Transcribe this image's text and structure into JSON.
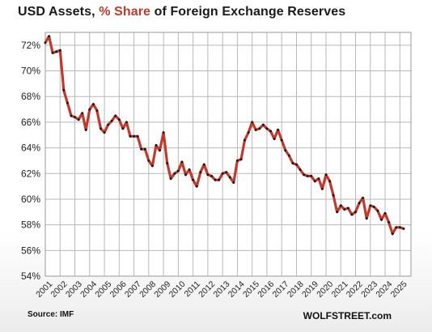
{
  "title": {
    "part1": "USD Assets, ",
    "highlight": "% Share",
    "part2": " of Foreign Exchange Reserves"
  },
  "footer": {
    "source": "Source: IMF",
    "brand": "WOLFSTREET.com"
  },
  "colors": {
    "line": "#c0392b",
    "highlight": "#c0392b",
    "marker": "#111111",
    "grid": "#b8b8b8"
  },
  "chart_data": {
    "type": "line",
    "title": "USD Assets, % Share of Foreign Exchange Reserves",
    "xlabel": "",
    "ylabel": "",
    "ylim": [
      54,
      73
    ],
    "xlim": [
      2001,
      2025.75
    ],
    "grid": true,
    "legend": "none",
    "x_ticks": [
      "2001",
      "2002",
      "2003",
      "2004",
      "2005",
      "2006",
      "2007",
      "2008",
      "2009",
      "2010",
      "2011",
      "2012",
      "2013",
      "2014",
      "2015",
      "2016",
      "2017",
      "2018",
      "2019",
      "2020",
      "2021",
      "2022",
      "2023",
      "2024",
      "2025"
    ],
    "y_ticks": [
      {
        "value": 54,
        "label": "54%"
      },
      {
        "value": 56,
        "label": "56%"
      },
      {
        "value": 58,
        "label": "58%"
      },
      {
        "value": 60,
        "label": "60%"
      },
      {
        "value": 62,
        "label": "62%"
      },
      {
        "value": 64,
        "label": "64%"
      },
      {
        "value": 66,
        "label": "66%"
      },
      {
        "value": 68,
        "label": "68%"
      },
      {
        "value": 70,
        "label": "70%"
      },
      {
        "value": 72,
        "label": "72%"
      }
    ],
    "series": [
      {
        "x": [
          2001.0,
          2001.25,
          2001.5,
          2001.75,
          2002.0,
          2002.25,
          2002.5,
          2002.75,
          2003.0,
          2003.25,
          2003.5,
          2003.75,
          2004.0,
          2004.25,
          2004.5,
          2004.75,
          2005.0,
          2005.25,
          2005.5,
          2005.75,
          2006.0,
          2006.25,
          2006.5,
          2006.75,
          2007.0,
          2007.25,
          2007.5,
          2007.75,
          2008.0,
          2008.25,
          2008.5,
          2008.75,
          2009.0,
          2009.25,
          2009.5,
          2009.75,
          2010.0,
          2010.25,
          2010.5,
          2010.75,
          2011.0,
          2011.25,
          2011.5,
          2011.75,
          2012.0,
          2012.25,
          2012.5,
          2012.75,
          2013.0,
          2013.25,
          2013.5,
          2013.75,
          2014.0,
          2014.25,
          2014.5,
          2014.75,
          2015.0,
          2015.25,
          2015.5,
          2015.75,
          2016.0,
          2016.25,
          2016.5,
          2016.75,
          2017.0,
          2017.25,
          2017.5,
          2017.75,
          2018.0,
          2018.25,
          2018.5,
          2018.75,
          2019.0,
          2019.25,
          2019.5,
          2019.75,
          2020.0,
          2020.25,
          2020.5,
          2020.75,
          2021.0,
          2021.25,
          2021.5,
          2021.75,
          2022.0,
          2022.25,
          2022.5,
          2022.75,
          2023.0,
          2023.25,
          2023.5,
          2023.75,
          2024.0,
          2024.25,
          2024.5,
          2024.75,
          2025.0,
          2025.25
        ],
        "values": [
          72.2,
          72.7,
          71.4,
          71.5,
          71.6,
          68.5,
          67.5,
          66.5,
          66.4,
          66.2,
          66.7,
          65.4,
          67.0,
          67.4,
          66.9,
          65.5,
          65.2,
          65.8,
          66.1,
          66.5,
          66.2,
          65.5,
          66.0,
          64.9,
          64.9,
          64.9,
          63.9,
          63.9,
          63.0,
          62.6,
          64.2,
          63.8,
          65.2,
          62.8,
          61.6,
          62.0,
          62.2,
          62.9,
          61.9,
          62.3,
          61.5,
          61.0,
          62.1,
          62.7,
          61.9,
          61.8,
          61.5,
          61.5,
          62.0,
          62.1,
          61.7,
          61.3,
          63.0,
          63.1,
          64.6,
          65.2,
          66.0,
          65.4,
          65.5,
          65.8,
          65.5,
          65.3,
          64.7,
          65.4,
          64.6,
          63.8,
          63.4,
          62.8,
          62.7,
          62.3,
          61.9,
          61.8,
          61.8,
          61.4,
          61.6,
          60.8,
          61.9,
          61.4,
          60.3,
          59.0,
          59.5,
          59.2,
          59.3,
          58.8,
          59.0,
          59.7,
          60.1,
          58.5,
          59.5,
          59.4,
          59.1,
          58.4,
          58.9,
          58.2,
          57.3,
          57.8,
          57.8,
          57.7
        ]
      }
    ]
  }
}
